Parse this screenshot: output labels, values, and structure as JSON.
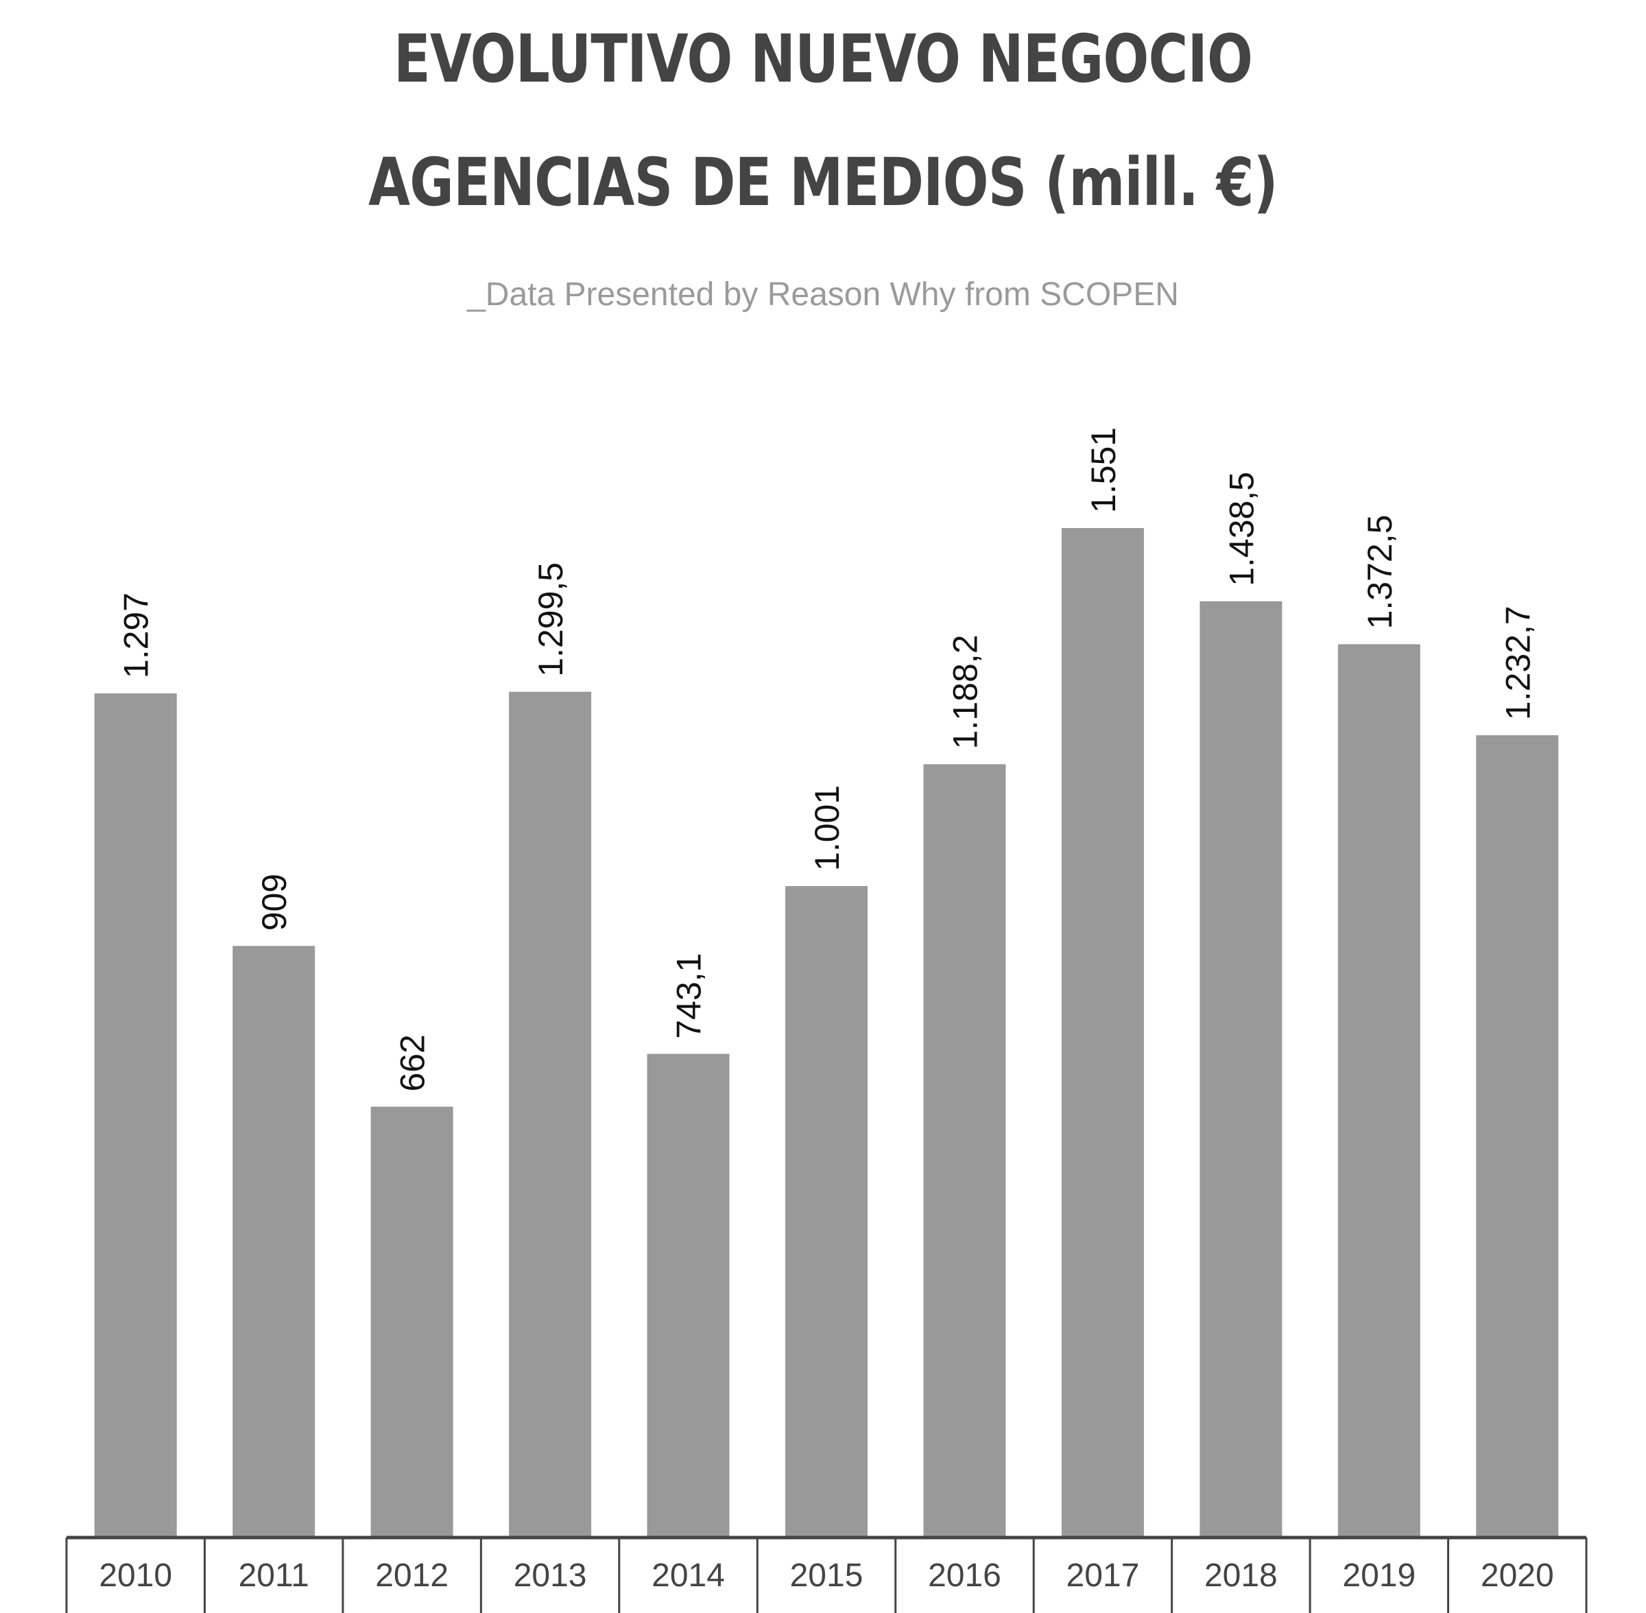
{
  "header": {
    "title_line_1": "EVOLUTIVO NUEVO NEGOCIO",
    "title_line_2": "AGENCIAS DE MEDIOS (mill. €)",
    "subtitle": "_Data Presented by Reason Why from SCOPEN"
  },
  "colors": {
    "bar": "#999999",
    "title": "#444444",
    "subtitle": "#9a9a9a"
  },
  "chart_data": {
    "type": "bar",
    "title": "EVOLUTIVO NUEVO NEGOCIO AGENCIAS DE MEDIOS (mill. €)",
    "subtitle": "_Data Presented by Reason Why from SCOPEN",
    "categories": [
      "2010",
      "2011",
      "2012",
      "2013",
      "2014",
      "2015",
      "2016",
      "2017",
      "2018",
      "2019",
      "2020"
    ],
    "values": [
      1297,
      909,
      662,
      1299.5,
      743.1,
      1001,
      1188.2,
      1551,
      1438.5,
      1372.5,
      1232.7
    ],
    "value_labels": [
      "1.297",
      "909",
      "662",
      "1.299,5",
      "743,1",
      "1.001",
      "1.188,2",
      "1.551",
      "1.438,5",
      "1.372,5",
      "1.232,7"
    ],
    "xlabel": "",
    "ylabel": "",
    "ylim": [
      0,
      1551
    ],
    "grid": false,
    "legend": "none"
  }
}
